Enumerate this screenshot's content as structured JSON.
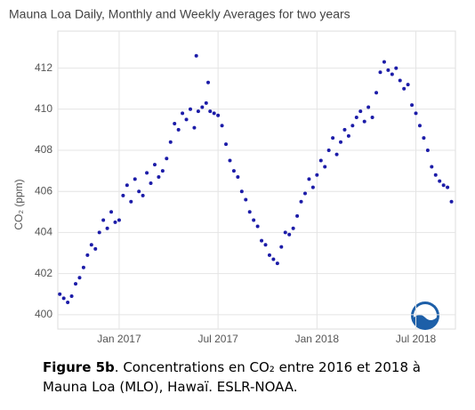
{
  "chart_data": {
    "type": "scatter",
    "title": "Mauna Loa Daily, Monthly and Weekly Averages for two years",
    "y_label": "CO₂ (ppm)",
    "color": "#1c1ca8",
    "grid": true,
    "xlim": [
      2016.69,
      2018.7
    ],
    "ylim": [
      399.3,
      413.8
    ],
    "xticks": [
      {
        "value": 2017,
        "label": "Jan 2017"
      },
      {
        "value": 2017.5,
        "label": "Jul 2017"
      },
      {
        "value": 2018,
        "label": "Jan 2018"
      },
      {
        "value": 2018.5,
        "label": "Jul 2018"
      }
    ],
    "yticks": [
      400,
      402,
      404,
      406,
      408,
      410,
      412
    ],
    "x": [
      2016.7,
      2016.72,
      2016.74,
      2016.76,
      2016.78,
      2016.8,
      2016.82,
      2016.84,
      2016.86,
      2016.88,
      2016.9,
      2016.92,
      2016.94,
      2016.96,
      2016.98,
      2017.0,
      2017.02,
      2017.04,
      2017.06,
      2017.08,
      2017.1,
      2017.12,
      2017.14,
      2017.16,
      2017.18,
      2017.2,
      2017.22,
      2017.24,
      2017.26,
      2017.28,
      2017.3,
      2017.32,
      2017.34,
      2017.36,
      2017.38,
      2017.39,
      2017.4,
      2017.42,
      2017.44,
      2017.45,
      2017.46,
      2017.48,
      2017.5,
      2017.52,
      2017.54,
      2017.56,
      2017.58,
      2017.6,
      2017.62,
      2017.64,
      2017.66,
      2017.68,
      2017.7,
      2017.72,
      2017.74,
      2017.76,
      2017.78,
      2017.8,
      2017.82,
      2017.84,
      2017.86,
      2017.88,
      2017.9,
      2017.92,
      2017.94,
      2017.96,
      2017.98,
      2018.0,
      2018.02,
      2018.04,
      2018.06,
      2018.08,
      2018.1,
      2018.12,
      2018.14,
      2018.16,
      2018.18,
      2018.2,
      2018.22,
      2018.24,
      2018.26,
      2018.28,
      2018.3,
      2018.32,
      2018.34,
      2018.36,
      2018.38,
      2018.4,
      2018.42,
      2018.44,
      2018.46,
      2018.48,
      2018.5,
      2018.52,
      2018.54,
      2018.56,
      2018.58,
      2018.6,
      2018.62,
      2018.64,
      2018.66,
      2018.68
    ],
    "values": [
      401.0,
      400.8,
      400.6,
      400.9,
      401.5,
      401.8,
      402.3,
      402.9,
      403.4,
      403.2,
      404.0,
      404.6,
      404.2,
      405.0,
      404.5,
      404.6,
      405.8,
      406.3,
      405.5,
      406.6,
      406.0,
      405.8,
      406.9,
      406.4,
      407.3,
      406.7,
      407.0,
      407.6,
      408.4,
      409.3,
      409.0,
      409.8,
      409.5,
      410.0,
      409.1,
      412.6,
      409.9,
      410.1,
      410.3,
      411.3,
      409.9,
      409.8,
      409.7,
      409.2,
      408.3,
      407.5,
      407.0,
      406.7,
      406.0,
      405.6,
      405.0,
      404.6,
      404.3,
      403.6,
      403.4,
      402.9,
      402.7,
      402.5,
      403.3,
      404.0,
      403.9,
      404.2,
      404.8,
      405.5,
      405.9,
      406.6,
      406.2,
      406.8,
      407.5,
      407.2,
      408.0,
      408.6,
      407.8,
      408.4,
      409.0,
      408.7,
      409.2,
      409.6,
      409.9,
      409.4,
      410.1,
      409.6,
      410.8,
      411.8,
      412.3,
      411.9,
      411.7,
      412.0,
      411.4,
      411.0,
      411.2,
      410.2,
      409.8,
      409.2,
      408.6,
      408.0,
      407.2,
      406.8,
      406.5,
      406.3,
      406.2,
      405.5
    ]
  },
  "caption": {
    "label": "Figure 5b",
    "text": ". Concentrations en CO₂ entre 2016 et 2018 à Mauna Loa (MLO), Hawaï. ESLR-NOAA."
  }
}
